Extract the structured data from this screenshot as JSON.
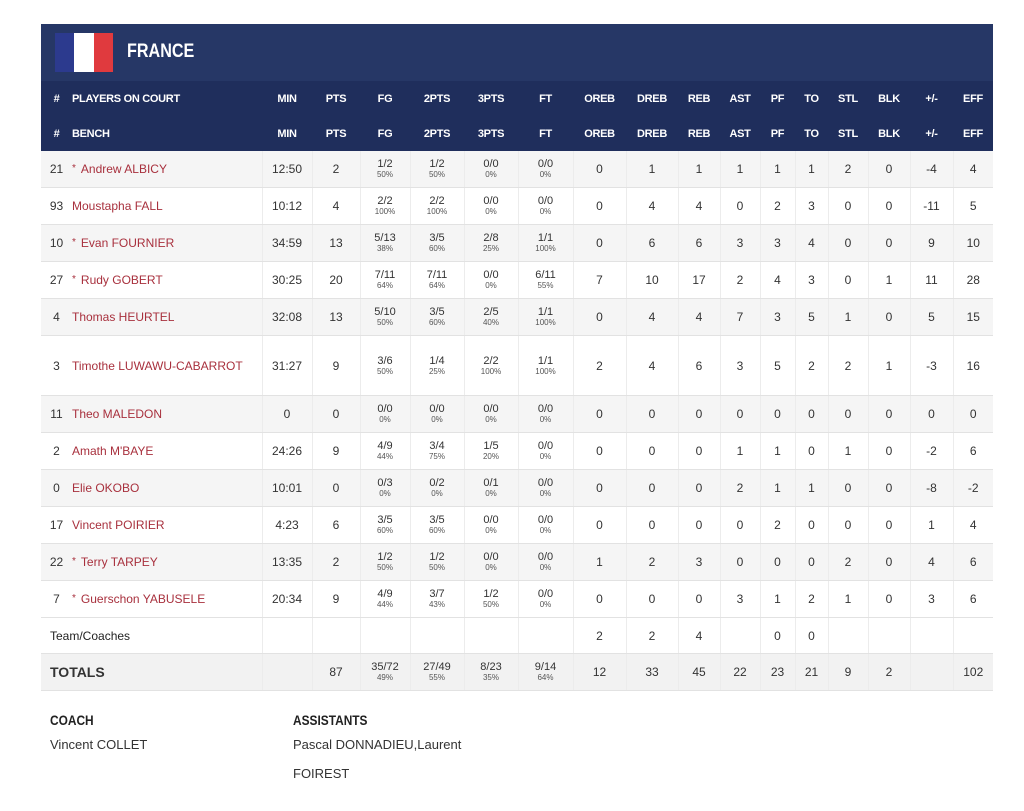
{
  "team": "FRANCE",
  "header_rows": [
    [
      "#",
      "PLAYERS ON COURT",
      "MIN",
      "PTS",
      "FG",
      "2PTS",
      "3PTS",
      "FT",
      "OREB",
      "DREB",
      "REB",
      "AST",
      "PF",
      "TO",
      "STL",
      "BLK",
      "+/-",
      "EFF"
    ],
    [
      "#",
      "BENCH",
      "MIN",
      "PTS",
      "FG",
      "2PTS",
      "3PTS",
      "FT",
      "OREB",
      "DREB",
      "REB",
      "AST",
      "PF",
      "TO",
      "STL",
      "BLK",
      "+/-",
      "EFF"
    ]
  ],
  "starter_mark": "*",
  "players": [
    {
      "no": 21,
      "starter": true,
      "name": "Andrew ALBICY",
      "stats": [
        "12:50",
        2,
        {
          "m": "1/2",
          "p": "50%"
        },
        {
          "m": "1/2",
          "p": "50%"
        },
        {
          "m": "0/0",
          "p": "0%"
        },
        {
          "m": "0/0",
          "p": "0%"
        },
        0,
        1,
        1,
        1,
        1,
        1,
        2,
        0,
        -4,
        4
      ]
    },
    {
      "no": 93,
      "starter": false,
      "name": "Moustapha FALL",
      "stats": [
        "10:12",
        4,
        {
          "m": "2/2",
          "p": "100%"
        },
        {
          "m": "2/2",
          "p": "100%"
        },
        {
          "m": "0/0",
          "p": "0%"
        },
        {
          "m": "0/0",
          "p": "0%"
        },
        0,
        4,
        4,
        0,
        2,
        3,
        0,
        0,
        -11,
        5
      ]
    },
    {
      "no": 10,
      "starter": true,
      "name": "Evan FOURNIER",
      "stats": [
        "34:59",
        13,
        {
          "m": "5/13",
          "p": "38%"
        },
        {
          "m": "3/5",
          "p": "60%"
        },
        {
          "m": "2/8",
          "p": "25%"
        },
        {
          "m": "1/1",
          "p": "100%"
        },
        0,
        6,
        6,
        3,
        3,
        4,
        0,
        0,
        9,
        10
      ]
    },
    {
      "no": 27,
      "starter": true,
      "name": "Rudy GOBERT",
      "stats": [
        "30:25",
        20,
        {
          "m": "7/11",
          "p": "64%"
        },
        {
          "m": "7/11",
          "p": "64%"
        },
        {
          "m": "0/0",
          "p": "0%"
        },
        {
          "m": "6/11",
          "p": "55%"
        },
        7,
        10,
        17,
        2,
        4,
        3,
        0,
        1,
        11,
        28
      ]
    },
    {
      "no": 4,
      "starter": false,
      "name": "Thomas HEURTEL",
      "stats": [
        "32:08",
        13,
        {
          "m": "5/10",
          "p": "50%"
        },
        {
          "m": "3/5",
          "p": "60%"
        },
        {
          "m": "2/5",
          "p": "40%"
        },
        {
          "m": "1/1",
          "p": "100%"
        },
        0,
        4,
        4,
        7,
        3,
        5,
        1,
        0,
        5,
        15
      ]
    },
    {
      "no": 3,
      "starter": false,
      "name": "Timothe LUWAWU-CABARROT",
      "stats": [
        "31:27",
        9,
        {
          "m": "3/6",
          "p": "50%"
        },
        {
          "m": "1/4",
          "p": "25%"
        },
        {
          "m": "2/2",
          "p": "100%"
        },
        {
          "m": "1/1",
          "p": "100%"
        },
        2,
        4,
        6,
        3,
        5,
        2,
        2,
        1,
        -3,
        16
      ]
    },
    {
      "no": 11,
      "starter": false,
      "name": "Theo MALEDON",
      "stats": [
        0,
        0,
        {
          "m": "0/0",
          "p": "0%"
        },
        {
          "m": "0/0",
          "p": "0%"
        },
        {
          "m": "0/0",
          "p": "0%"
        },
        {
          "m": "0/0",
          "p": "0%"
        },
        0,
        0,
        0,
        0,
        0,
        0,
        0,
        0,
        0,
        0
      ]
    },
    {
      "no": 2,
      "starter": false,
      "name": "Amath M'BAYE",
      "stats": [
        "24:26",
        9,
        {
          "m": "4/9",
          "p": "44%"
        },
        {
          "m": "3/4",
          "p": "75%"
        },
        {
          "m": "1/5",
          "p": "20%"
        },
        {
          "m": "0/0",
          "p": "0%"
        },
        0,
        0,
        0,
        1,
        1,
        0,
        1,
        0,
        -2,
        6
      ]
    },
    {
      "no": 0,
      "starter": false,
      "name": "Elie OKOBO",
      "stats": [
        "10:01",
        0,
        {
          "m": "0/3",
          "p": "0%"
        },
        {
          "m": "0/2",
          "p": "0%"
        },
        {
          "m": "0/1",
          "p": "0%"
        },
        {
          "m": "0/0",
          "p": "0%"
        },
        0,
        0,
        0,
        2,
        1,
        1,
        0,
        0,
        -8,
        -2
      ]
    },
    {
      "no": 17,
      "starter": false,
      "name": "Vincent POIRIER",
      "stats": [
        "4:23",
        6,
        {
          "m": "3/5",
          "p": "60%"
        },
        {
          "m": "3/5",
          "p": "60%"
        },
        {
          "m": "0/0",
          "p": "0%"
        },
        {
          "m": "0/0",
          "p": "0%"
        },
        0,
        0,
        0,
        0,
        2,
        0,
        0,
        0,
        1,
        4
      ]
    },
    {
      "no": 22,
      "starter": true,
      "name": "Terry TARPEY",
      "stats": [
        "13:35",
        2,
        {
          "m": "1/2",
          "p": "50%"
        },
        {
          "m": "1/2",
          "p": "50%"
        },
        {
          "m": "0/0",
          "p": "0%"
        },
        {
          "m": "0/0",
          "p": "0%"
        },
        1,
        2,
        3,
        0,
        0,
        0,
        2,
        0,
        4,
        6
      ]
    },
    {
      "no": 7,
      "starter": true,
      "name": "Guerschon YABUSELE",
      "stats": [
        "20:34",
        9,
        {
          "m": "4/9",
          "p": "44%"
        },
        {
          "m": "3/7",
          "p": "43%"
        },
        {
          "m": "1/2",
          "p": "50%"
        },
        {
          "m": "0/0",
          "p": "0%"
        },
        0,
        0,
        0,
        3,
        1,
        2,
        1,
        0,
        3,
        6
      ]
    }
  ],
  "team_row": {
    "label": "Team/Coaches",
    "stats": [
      null,
      null,
      null,
      null,
      null,
      null,
      2,
      2,
      4,
      null,
      0,
      0,
      null,
      null,
      null,
      null
    ]
  },
  "totals": {
    "label": "TOTALS",
    "stats": [
      null,
      87,
      {
        "m": "35/72",
        "p": "49%"
      },
      {
        "m": "27/49",
        "p": "55%"
      },
      {
        "m": "8/23",
        "p": "35%"
      },
      {
        "m": "9/14",
        "p": "64%"
      },
      12,
      33,
      45,
      22,
      23,
      21,
      9,
      2,
      null,
      102
    ]
  },
  "coach": {
    "title": "COACH",
    "name": "Vincent COLLET"
  },
  "assistants": {
    "title": "ASSISTANTS",
    "names": "Pascal DONNADIEU,Laurent FOIREST"
  }
}
